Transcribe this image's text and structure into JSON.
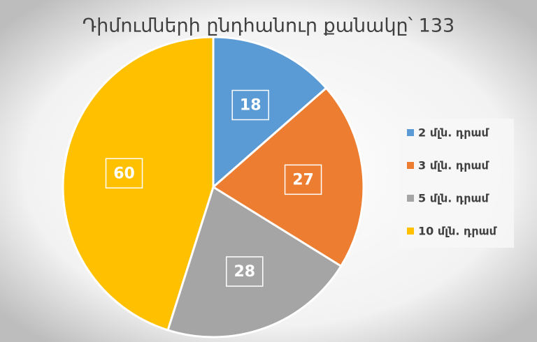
{
  "chart_data": {
    "type": "pie",
    "title": "Դիմումների ընդհանուր քանակը՝ 133",
    "categories": [
      "2 մլն. դրամ",
      "3 մլն. դրամ",
      "5 մլն. դրամ",
      "10 մլն. դրամ"
    ],
    "values": [
      18,
      27,
      28,
      60
    ],
    "colors": [
      "#5b9bd5",
      "#ed7d31",
      "#a5a5a5",
      "#ffc000"
    ],
    "legend": "right"
  }
}
